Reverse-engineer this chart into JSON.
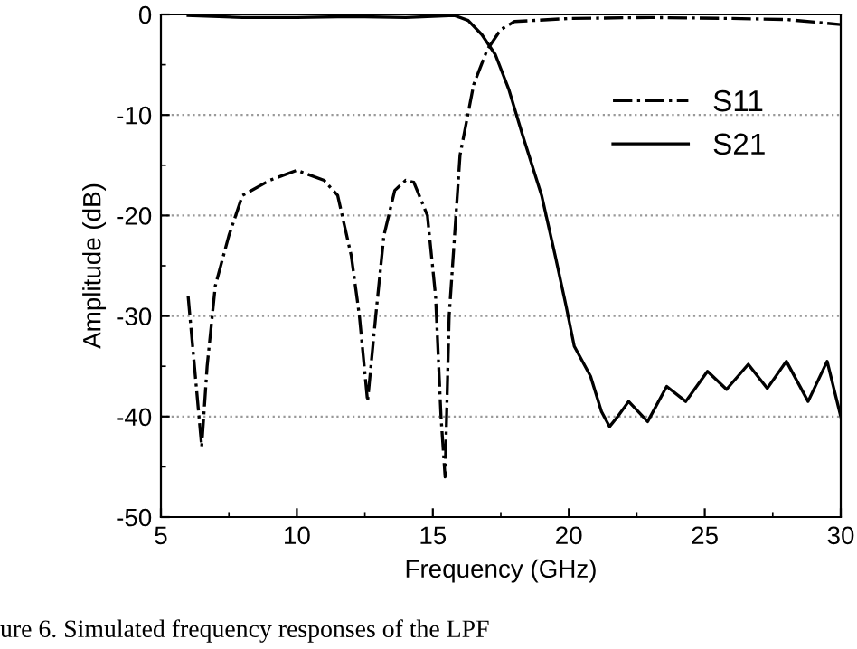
{
  "chart_data": {
    "type": "line",
    "xlabel": "Frequency (GHz)",
    "ylabel": "Amplitude (dB)",
    "annotations": [
      "ure 6. Simulated frequency responses of the LPF"
    ],
    "xlim": [
      5,
      30
    ],
    "xticks": [
      5,
      10,
      15,
      20,
      25,
      30
    ],
    "ylim": [
      -50,
      0
    ],
    "yticks": [
      -50,
      -40,
      -30,
      -20,
      -10,
      0
    ],
    "grid": "y",
    "legend": "right",
    "marker": "none",
    "series": [
      {
        "name": "S11",
        "color": "#000000",
        "line_style": "dashdot",
        "x": [
          6.0,
          6.3,
          6.5,
          6.7,
          7.0,
          7.5,
          8.0,
          9.0,
          10,
          11,
          11.5,
          12,
          12.3,
          12.6,
          12.9,
          13.2,
          13.6,
          14,
          14.3,
          14.8,
          15.1,
          15.3,
          15.45,
          15.6,
          16.0,
          16.5,
          17,
          17.5,
          18,
          20,
          23,
          26,
          28,
          30
        ],
        "values": [
          -28,
          -37,
          -43,
          -35,
          -27,
          -22,
          -18,
          -16.5,
          -15.5,
          -16.5,
          -18,
          -24,
          -30,
          -38.5,
          -30,
          -22,
          -17.5,
          -16.5,
          -16.7,
          -20,
          -28,
          -40,
          -46,
          -30,
          -14,
          -7,
          -3.5,
          -1.5,
          -0.7,
          -0.4,
          -0.3,
          -0.4,
          -0.5,
          -1.0
        ]
      },
      {
        "name": "S21",
        "color": "#000000",
        "line_style": "solid",
        "x": [
          6,
          8,
          10,
          12,
          14,
          15.8,
          16.3,
          16.8,
          17.3,
          17.8,
          18.3,
          19,
          19.5,
          19.9,
          20.2,
          20.8,
          21.2,
          21.5,
          21.8,
          22.2,
          22.9,
          23.6,
          24.3,
          25.1,
          25.8,
          26.6,
          27.3,
          28.0,
          28.8,
          29.5,
          30
        ],
        "values": [
          -0.1,
          -0.3,
          -0.3,
          -0.2,
          -0.3,
          -0.1,
          -0.6,
          -2,
          -4,
          -7.5,
          -12,
          -18,
          -24,
          -29,
          -33,
          -36,
          -39.5,
          -41,
          -40,
          -38.5,
          -40.5,
          -37,
          -38.5,
          -35.5,
          -37.3,
          -34.8,
          -37.2,
          -34.5,
          -38.5,
          -34.5,
          -40
        ]
      }
    ]
  }
}
